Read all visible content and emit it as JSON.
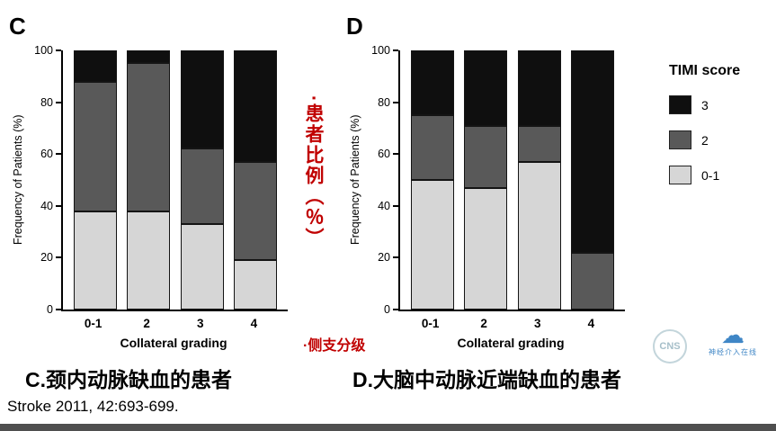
{
  "colors": {
    "score3": "#0f0f0f",
    "score2": "#595959",
    "score01": "#d6d6d6",
    "annotation_red": "#c00000"
  },
  "legend": {
    "title": "TIMI score",
    "items": [
      {
        "label": "3",
        "color_key": "score3"
      },
      {
        "label": "2",
        "color_key": "score2"
      },
      {
        "label": "0-1",
        "color_key": "score01"
      }
    ]
  },
  "annotations": {
    "y_axis_cn": "·患者比例（％）",
    "x_axis_cn": "·侧支分级"
  },
  "captions": {
    "c": "C.颈内动脉缺血的患者",
    "d": "D.大脑中动脉近端缺血的患者",
    "reference": "Stroke 2011, 42:693-699."
  },
  "watermark": {
    "cns": "CNS",
    "text": "神经介入在线"
  },
  "chart_data": [
    {
      "type": "bar",
      "stacked": true,
      "panel": "C",
      "categories": [
        "0-1",
        "2",
        "3",
        "4"
      ],
      "series": [
        {
          "name": "0-1",
          "color_key": "score01",
          "values": [
            38,
            38,
            33,
            19
          ]
        },
        {
          "name": "2",
          "color_key": "score2",
          "values": [
            50,
            57,
            29,
            38
          ]
        },
        {
          "name": "3",
          "color_key": "score3",
          "values": [
            12,
            5,
            38,
            43
          ]
        }
      ],
      "xlabel": "Collateral grading",
      "ylabel": "Frequency of Patients (%)",
      "ylim": [
        0,
        100
      ],
      "yticks": [
        0,
        20,
        40,
        60,
        80,
        100
      ],
      "grid": false,
      "legend_position": "right"
    },
    {
      "type": "bar",
      "stacked": true,
      "panel": "D",
      "categories": [
        "0-1",
        "2",
        "3",
        "4"
      ],
      "series": [
        {
          "name": "0-1",
          "color_key": "score01",
          "values": [
            50,
            47,
            57,
            0
          ]
        },
        {
          "name": "2",
          "color_key": "score2",
          "values": [
            25,
            24,
            14,
            22
          ]
        },
        {
          "name": "3",
          "color_key": "score3",
          "values": [
            25,
            29,
            29,
            78
          ]
        }
      ],
      "xlabel": "Collateral grading",
      "ylabel": "Frequency of Patients (%)",
      "ylim": [
        0,
        100
      ],
      "yticks": [
        0,
        20,
        40,
        60,
        80,
        100
      ],
      "grid": false,
      "legend_position": "right"
    }
  ]
}
